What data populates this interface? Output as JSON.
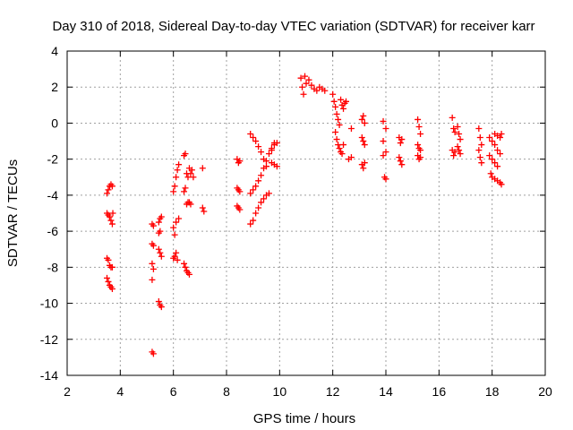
{
  "chart_data": {
    "type": "scatter",
    "title": "Day 310 of 2018, Sidereal Day-to-day VTEC variation (SDTVAR) for receiver karr",
    "xlabel": "GPS time / hours",
    "ylabel": "SDTVAR / TECUs",
    "xlim": [
      2,
      20
    ],
    "ylim": [
      -14,
      4
    ],
    "xticks": [
      2,
      4,
      6,
      8,
      10,
      12,
      14,
      16,
      18,
      20
    ],
    "yticks": [
      -14,
      -12,
      -10,
      -8,
      -6,
      -4,
      -2,
      0,
      2,
      4
    ],
    "grid": true,
    "marker": "+",
    "colors": {
      "marker": "#ff0000",
      "grid": "#a0a0a0",
      "axis": "#000000"
    },
    "series": [
      {
        "name": "SDTVAR",
        "points": [
          [
            3.5,
            -3.9
          ],
          [
            3.55,
            -3.7
          ],
          [
            3.6,
            -3.5
          ],
          [
            3.65,
            -3.4
          ],
          [
            3.7,
            -3.5
          ],
          [
            3.5,
            -5.0
          ],
          [
            3.55,
            -5.1
          ],
          [
            3.6,
            -5.2
          ],
          [
            3.65,
            -5.4
          ],
          [
            3.7,
            -5.6
          ],
          [
            3.72,
            -5.0
          ],
          [
            3.5,
            -7.5
          ],
          [
            3.55,
            -7.6
          ],
          [
            3.6,
            -7.9
          ],
          [
            3.65,
            -8.0
          ],
          [
            3.7,
            -8.0
          ],
          [
            3.5,
            -8.6
          ],
          [
            3.55,
            -8.8
          ],
          [
            3.6,
            -9.0
          ],
          [
            3.65,
            -9.1
          ],
          [
            3.7,
            -9.2
          ],
          [
            5.2,
            -5.6
          ],
          [
            5.25,
            -5.7
          ],
          [
            5.2,
            -6.7
          ],
          [
            5.25,
            -6.8
          ],
          [
            5.2,
            -7.8
          ],
          [
            5.25,
            -8.1
          ],
          [
            5.2,
            -8.7
          ],
          [
            5.2,
            -12.7
          ],
          [
            5.25,
            -12.8
          ],
          [
            5.45,
            -5.5
          ],
          [
            5.5,
            -5.3
          ],
          [
            5.55,
            -5.2
          ],
          [
            5.45,
            -6.1
          ],
          [
            5.5,
            -6.0
          ],
          [
            5.45,
            -7.0
          ],
          [
            5.5,
            -7.2
          ],
          [
            5.55,
            -7.4
          ],
          [
            5.45,
            -9.9
          ],
          [
            5.5,
            -10.1
          ],
          [
            5.55,
            -10.2
          ],
          [
            6.0,
            -3.8
          ],
          [
            6.05,
            -3.5
          ],
          [
            6.1,
            -3.0
          ],
          [
            6.15,
            -2.6
          ],
          [
            6.2,
            -2.3
          ],
          [
            6.0,
            -5.8
          ],
          [
            6.05,
            -6.2
          ],
          [
            6.1,
            -5.5
          ],
          [
            6.2,
            -5.3
          ],
          [
            6.0,
            -7.5
          ],
          [
            6.05,
            -7.4
          ],
          [
            6.1,
            -7.2
          ],
          [
            6.15,
            -7.6
          ],
          [
            6.4,
            -1.8
          ],
          [
            6.45,
            -1.7
          ],
          [
            6.5,
            -2.8
          ],
          [
            6.55,
            -3.0
          ],
          [
            6.6,
            -2.5
          ],
          [
            6.65,
            -2.8
          ],
          [
            6.7,
            -2.6
          ],
          [
            6.75,
            -3.0
          ],
          [
            6.4,
            -3.8
          ],
          [
            6.45,
            -3.6
          ],
          [
            6.5,
            -4.5
          ],
          [
            6.55,
            -4.4
          ],
          [
            6.6,
            -4.4
          ],
          [
            6.65,
            -4.5
          ],
          [
            6.4,
            -7.8
          ],
          [
            6.45,
            -8.0
          ],
          [
            6.5,
            -8.2
          ],
          [
            6.55,
            -8.3
          ],
          [
            6.6,
            -8.4
          ],
          [
            7.1,
            -2.5
          ],
          [
            7.1,
            -4.7
          ],
          [
            7.15,
            -4.9
          ],
          [
            8.4,
            -2.0
          ],
          [
            8.45,
            -2.2
          ],
          [
            8.5,
            -2.1
          ],
          [
            8.4,
            -3.6
          ],
          [
            8.45,
            -3.7
          ],
          [
            8.5,
            -3.8
          ],
          [
            8.4,
            -4.6
          ],
          [
            8.45,
            -4.7
          ],
          [
            8.5,
            -4.8
          ],
          [
            8.9,
            -0.6
          ],
          [
            9.0,
            -0.8
          ],
          [
            9.1,
            -1.0
          ],
          [
            9.2,
            -1.3
          ],
          [
            9.3,
            -1.6
          ],
          [
            9.4,
            -2.0
          ],
          [
            9.5,
            -2.4
          ],
          [
            8.9,
            -3.9
          ],
          [
            9.0,
            -3.7
          ],
          [
            9.1,
            -3.5
          ],
          [
            9.2,
            -3.2
          ],
          [
            9.3,
            -2.9
          ],
          [
            9.4,
            -2.5
          ],
          [
            9.5,
            -2.1
          ],
          [
            9.6,
            -1.7
          ],
          [
            9.7,
            -1.4
          ],
          [
            9.8,
            -1.1
          ],
          [
            8.9,
            -5.6
          ],
          [
            9.0,
            -5.4
          ],
          [
            9.1,
            -5.0
          ],
          [
            9.2,
            -4.7
          ],
          [
            9.3,
            -4.4
          ],
          [
            9.4,
            -4.2
          ],
          [
            9.5,
            -4.0
          ],
          [
            9.6,
            -3.9
          ],
          [
            9.7,
            -2.2
          ],
          [
            9.8,
            -2.3
          ],
          [
            9.9,
            -2.4
          ],
          [
            9.7,
            -1.5
          ],
          [
            9.8,
            -1.2
          ],
          [
            9.9,
            -1.1
          ],
          [
            10.8,
            2.5
          ],
          [
            10.85,
            2.0
          ],
          [
            10.9,
            1.6
          ],
          [
            10.95,
            2.6
          ],
          [
            11.0,
            2.2
          ],
          [
            11.1,
            2.4
          ],
          [
            11.2,
            2.1
          ],
          [
            11.3,
            1.9
          ],
          [
            11.4,
            1.8
          ],
          [
            11.5,
            2.0
          ],
          [
            11.6,
            1.9
          ],
          [
            11.7,
            1.8
          ],
          [
            12.0,
            1.6
          ],
          [
            12.05,
            1.2
          ],
          [
            12.1,
            0.9
          ],
          [
            12.15,
            0.5
          ],
          [
            12.2,
            0.2
          ],
          [
            12.25,
            -0.1
          ],
          [
            12.1,
            -0.5
          ],
          [
            12.15,
            -0.9
          ],
          [
            12.2,
            -1.2
          ],
          [
            12.25,
            -1.4
          ],
          [
            12.3,
            -1.6
          ],
          [
            12.35,
            -1.7
          ],
          [
            12.4,
            -1.2
          ],
          [
            12.3,
            1.3
          ],
          [
            12.35,
            1.0
          ],
          [
            12.4,
            0.8
          ],
          [
            12.45,
            1.1
          ],
          [
            12.5,
            1.2
          ],
          [
            12.6,
            -2.0
          ],
          [
            12.7,
            -1.9
          ],
          [
            12.7,
            -0.3
          ],
          [
            13.1,
            0.2
          ],
          [
            13.15,
            0.4
          ],
          [
            13.2,
            0.0
          ],
          [
            13.1,
            -0.8
          ],
          [
            13.15,
            -1.0
          ],
          [
            13.2,
            -1.2
          ],
          [
            13.1,
            -2.3
          ],
          [
            13.15,
            -2.5
          ],
          [
            13.2,
            -2.2
          ],
          [
            13.9,
            0.1
          ],
          [
            14.0,
            -0.3
          ],
          [
            13.9,
            -1.0
          ],
          [
            14.0,
            -1.6
          ],
          [
            13.9,
            -1.8
          ],
          [
            14.0,
            -3.1
          ],
          [
            13.95,
            -3.0
          ],
          [
            14.5,
            -0.8
          ],
          [
            14.55,
            -1.1
          ],
          [
            14.6,
            -0.9
          ],
          [
            14.5,
            -1.9
          ],
          [
            14.55,
            -2.1
          ],
          [
            14.6,
            -2.3
          ],
          [
            15.2,
            0.2
          ],
          [
            15.25,
            -0.2
          ],
          [
            15.3,
            -0.6
          ],
          [
            15.2,
            -1.2
          ],
          [
            15.25,
            -1.4
          ],
          [
            15.3,
            -1.5
          ],
          [
            15.2,
            -1.8
          ],
          [
            15.25,
            -2.0
          ],
          [
            15.3,
            -1.9
          ],
          [
            16.5,
            0.3
          ],
          [
            16.55,
            -0.3
          ],
          [
            16.6,
            -0.5
          ],
          [
            16.5,
            -1.5
          ],
          [
            16.55,
            -1.8
          ],
          [
            16.6,
            -1.6
          ],
          [
            16.7,
            -0.2
          ],
          [
            16.75,
            -0.6
          ],
          [
            16.8,
            -0.9
          ],
          [
            16.7,
            -1.3
          ],
          [
            16.75,
            -1.5
          ],
          [
            16.8,
            -1.7
          ],
          [
            17.5,
            -0.3
          ],
          [
            17.55,
            -0.8
          ],
          [
            17.6,
            -1.2
          ],
          [
            17.5,
            -1.5
          ],
          [
            17.55,
            -1.9
          ],
          [
            17.6,
            -2.2
          ],
          [
            17.9,
            -0.8
          ],
          [
            18.0,
            -1.0
          ],
          [
            18.1,
            -1.2
          ],
          [
            18.2,
            -1.5
          ],
          [
            18.3,
            -1.7
          ],
          [
            17.9,
            -1.8
          ],
          [
            18.0,
            -2.0
          ],
          [
            18.1,
            -2.2
          ],
          [
            18.2,
            -2.4
          ],
          [
            17.95,
            -2.8
          ],
          [
            18.0,
            -3.0
          ],
          [
            18.1,
            -3.1
          ],
          [
            18.2,
            -3.2
          ],
          [
            18.3,
            -3.3
          ],
          [
            18.35,
            -3.4
          ],
          [
            18.1,
            -0.6
          ],
          [
            18.2,
            -0.7
          ],
          [
            18.3,
            -0.8
          ],
          [
            18.35,
            -0.6
          ]
        ]
      }
    ]
  }
}
